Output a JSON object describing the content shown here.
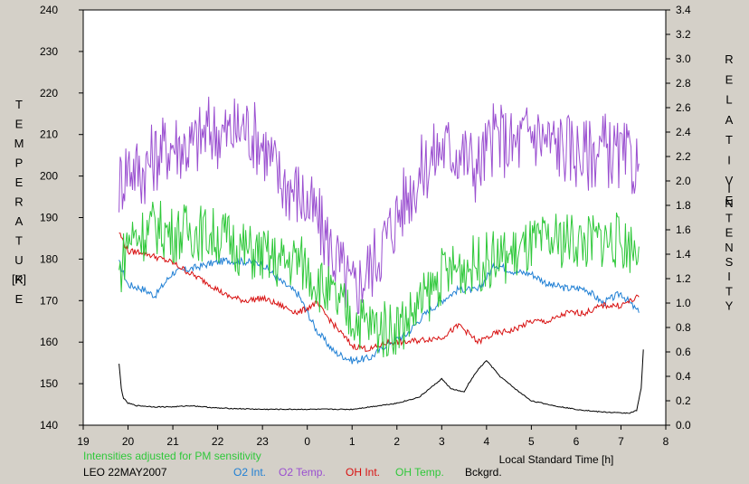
{
  "chart_data": {
    "type": "line",
    "x_axis": {
      "label": "Local Standard Time [h]",
      "min": 19,
      "max": 32,
      "ticks": [
        19,
        20,
        21,
        22,
        23,
        24,
        25,
        26,
        27,
        28,
        29,
        30,
        31,
        32
      ],
      "tick_labels": [
        "19",
        "20",
        "21",
        "22",
        "23",
        "0",
        "1",
        "2",
        "3",
        "4",
        "5",
        "6",
        "7",
        "8"
      ]
    },
    "y_left": {
      "label_letters": [
        "T",
        "E",
        "M",
        "P",
        "E",
        "R",
        "A",
        "T",
        "U",
        "R",
        "E"
      ],
      "unit": "[K]",
      "min": 140,
      "max": 240,
      "ticks": [
        "140",
        "150",
        "160",
        "170",
        "180",
        "190",
        "200",
        "210",
        "220",
        "230",
        "240"
      ]
    },
    "y_right": {
      "label_word1": [
        "R",
        "E",
        "L",
        "A",
        "T",
        "I",
        "V",
        "E"
      ],
      "label_word2": [
        "I",
        "N",
        "T",
        "E",
        "N",
        "S",
        "I",
        "T",
        "Y"
      ],
      "min": 0,
      "max": 3.4,
      "ticks": [
        "0.0",
        "0.2",
        "0.4",
        "0.6",
        "0.8",
        "1.0",
        "1.2",
        "1.4",
        "1.6",
        "1.8",
        "2.0",
        "2.2",
        "2.4",
        "2.6",
        "2.8",
        "3.0",
        "3.2",
        "3.4"
      ]
    },
    "note": "Intensities adjusted for PM sensitivity",
    "station": "LEO 22MAY2007",
    "series": [
      {
        "name": "O2 Int.",
        "color": "#1f7fd4",
        "axis": "right",
        "x": [
          19.8,
          20.0,
          20.3,
          20.6,
          21.0,
          21.4,
          21.8,
          22.2,
          22.6,
          23.0,
          23.4,
          23.8,
          24.2,
          24.6,
          25.0,
          25.4,
          25.8,
          26.2,
          26.6,
          27.0,
          27.4,
          27.8,
          28.2,
          28.6,
          29.0,
          29.4,
          29.8,
          30.2,
          30.6,
          31.0,
          31.4
        ],
        "y": [
          1.33,
          1.15,
          1.12,
          1.06,
          1.25,
          1.28,
          1.32,
          1.35,
          1.34,
          1.32,
          1.18,
          1.07,
          0.78,
          0.6,
          0.53,
          0.55,
          0.67,
          0.74,
          0.9,
          1.02,
          1.12,
          1.1,
          1.32,
          1.26,
          1.24,
          1.15,
          1.12,
          1.12,
          1.0,
          1.08,
          0.92
        ]
      },
      {
        "name": "O2 Temp.",
        "color": "#9a4fd0",
        "axis": "left",
        "x": [
          19.8,
          20.0,
          20.3,
          20.6,
          21.0,
          21.4,
          21.8,
          22.2,
          22.6,
          23.0,
          23.4,
          23.8,
          24.2,
          24.6,
          25.0,
          25.4,
          25.8,
          26.2,
          26.6,
          27.0,
          27.4,
          27.8,
          28.2,
          28.6,
          29.0,
          29.4,
          29.8,
          30.2,
          30.6,
          31.0,
          31.4
        ],
        "y": [
          198,
          203,
          201,
          205,
          208,
          207,
          211,
          210,
          212,
          208,
          199,
          196,
          190,
          181,
          172,
          178,
          186,
          195,
          202,
          207,
          206,
          202,
          210,
          207,
          211,
          208,
          207,
          205,
          207,
          204,
          203
        ]
      },
      {
        "name": "OH Int.",
        "color": "#d81010",
        "axis": "right",
        "x": [
          19.8,
          20.0,
          20.3,
          20.6,
          21.0,
          21.4,
          21.8,
          22.2,
          22.6,
          23.0,
          23.4,
          23.8,
          24.2,
          24.6,
          25.0,
          25.4,
          25.8,
          26.2,
          26.6,
          27.0,
          27.4,
          27.8,
          28.2,
          28.6,
          29.0,
          29.4,
          29.8,
          30.2,
          30.6,
          31.0,
          31.4
        ],
        "y": [
          1.58,
          1.42,
          1.42,
          1.38,
          1.33,
          1.24,
          1.16,
          1.06,
          1.02,
          1.04,
          0.98,
          0.92,
          1.0,
          0.82,
          0.65,
          0.62,
          0.68,
          0.68,
          0.7,
          0.72,
          0.82,
          0.68,
          0.75,
          0.78,
          0.85,
          0.85,
          0.92,
          0.92,
          0.98,
          0.98,
          1.05
        ]
      },
      {
        "name": "OH Temp.",
        "color": "#2fc83a",
        "axis": "left",
        "x": [
          19.8,
          20.0,
          20.3,
          20.6,
          21.0,
          21.4,
          21.8,
          22.2,
          22.6,
          23.0,
          23.4,
          23.8,
          24.2,
          24.6,
          25.0,
          25.4,
          25.8,
          26.2,
          26.6,
          27.0,
          27.4,
          27.8,
          28.2,
          28.6,
          29.0,
          29.4,
          29.8,
          30.2,
          30.6,
          31.0,
          31.4
        ],
        "y": [
          176,
          185,
          186,
          188,
          186,
          187,
          186,
          185,
          182,
          181,
          179,
          180,
          175,
          170,
          166,
          164,
          163,
          165,
          170,
          176,
          178,
          179,
          180,
          181,
          183,
          184,
          185,
          184,
          185,
          184,
          183
        ]
      },
      {
        "name": "Bckgrd.",
        "color": "#000000",
        "axis": "right",
        "x": [
          19.8,
          19.85,
          19.9,
          20.0,
          20.2,
          20.6,
          21.0,
          21.4,
          22.0,
          23.0,
          24.0,
          25.0,
          26.0,
          26.5,
          26.8,
          27.0,
          27.2,
          27.5,
          27.6,
          27.8,
          28.0,
          28.3,
          28.7,
          29.0,
          29.5,
          30.0,
          30.5,
          31.0,
          31.2,
          31.35,
          31.45,
          31.5
        ],
        "y": [
          0.5,
          0.3,
          0.22,
          0.18,
          0.16,
          0.15,
          0.15,
          0.16,
          0.14,
          0.13,
          0.13,
          0.13,
          0.18,
          0.23,
          0.32,
          0.38,
          0.3,
          0.27,
          0.34,
          0.45,
          0.53,
          0.4,
          0.28,
          0.2,
          0.16,
          0.13,
          0.11,
          0.1,
          0.1,
          0.12,
          0.3,
          0.62
        ]
      }
    ]
  }
}
